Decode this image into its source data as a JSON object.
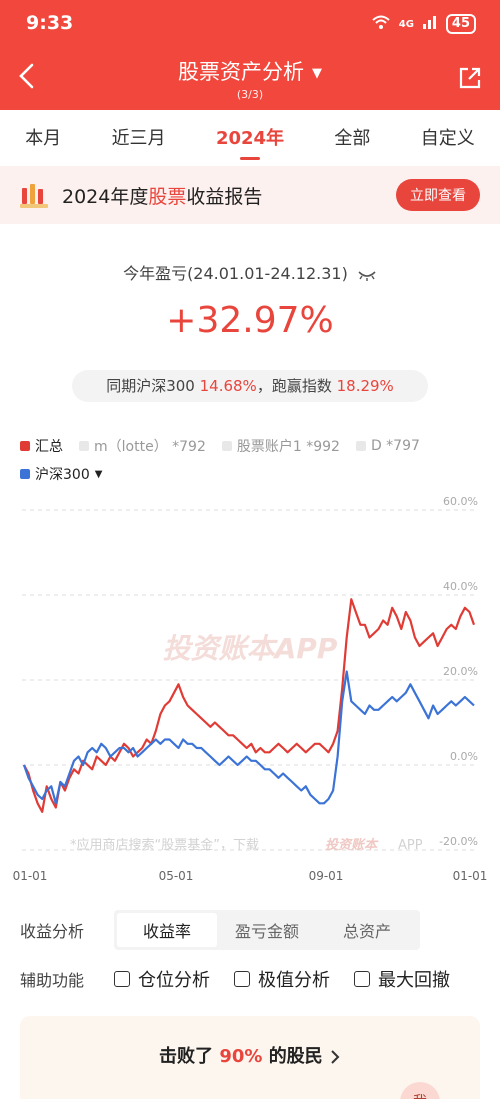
{
  "status": {
    "time": "9:33",
    "signal": "4G",
    "battery": "45"
  },
  "header": {
    "title": "股票资产分析",
    "subtitle": "(3/3)"
  },
  "tabs": [
    {
      "label": "本月"
    },
    {
      "label": "近三月"
    },
    {
      "label": "2024年",
      "active": true
    },
    {
      "label": "全部"
    },
    {
      "label": "自定义"
    }
  ],
  "banner": {
    "prefix": "2024年度",
    "highlight": "股票",
    "suffix": "收益报告",
    "button": "立即查看"
  },
  "summary": {
    "period": "今年盈亏(24.01.01-24.12.31)",
    "total_pct": "+32.97%",
    "compare_prefix": "同期沪深300",
    "compare_value": "14.68%",
    "beat_prefix": "，跑赢指数",
    "beat_value": "18.29%"
  },
  "legend": [
    {
      "label": "汇总",
      "color": "#e03b35",
      "active": true
    },
    {
      "label": "m（lotte） *792",
      "active": false
    },
    {
      "label": "股票账户1 *992",
      "active": false
    },
    {
      "label": "D *797",
      "active": false
    }
  ],
  "index_legend": {
    "label": "沪深300",
    "color": "#3b73d6"
  },
  "chart_data": {
    "type": "line",
    "x_ticks": [
      "01-01",
      "05-01",
      "09-01",
      "01-01"
    ],
    "y_ticks": [
      "60.0%",
      "40.0%",
      "20.0%",
      "0.0%",
      "-20.0%"
    ],
    "ylim": [
      -20,
      60
    ],
    "watermark": "投资账本APP",
    "footer_note": "*应用商店搜索“股票基金”，下载",
    "footer_brand": "投资账本",
    "footer_app": "APP",
    "series": [
      {
        "name": "汇总",
        "color": "#e03b35",
        "values": [
          0,
          -2,
          -6,
          -9,
          -11,
          -5,
          -8,
          -10,
          -4,
          -6,
          -3,
          -1,
          -2,
          1,
          0,
          -1,
          2,
          1,
          0,
          2,
          1,
          3,
          5,
          4,
          2,
          3,
          4,
          6,
          5,
          8,
          12,
          14,
          15,
          17,
          19,
          16,
          14,
          13,
          12,
          11,
          10,
          9,
          10,
          9,
          8,
          7,
          7,
          6,
          5,
          4,
          5,
          3,
          4,
          3,
          3,
          4,
          5,
          4,
          3,
          4,
          5,
          4,
          3,
          4,
          5,
          5,
          4,
          3,
          5,
          8,
          18,
          30,
          39,
          36,
          33,
          33,
          30,
          31,
          32,
          34,
          33,
          37,
          35,
          32,
          36,
          34,
          30,
          28,
          29,
          30,
          31,
          28,
          30,
          32,
          33,
          32,
          35,
          37,
          36,
          33
        ]
      },
      {
        "name": "沪深300",
        "color": "#3b73d6",
        "values": [
          0,
          -3,
          -5,
          -7,
          -8,
          -6,
          -5,
          -9,
          -4,
          -5,
          -2,
          1,
          2,
          0,
          3,
          4,
          3,
          5,
          4,
          2,
          3,
          4,
          4,
          3,
          4,
          2,
          3,
          4,
          5,
          6,
          5,
          6,
          6,
          5,
          4,
          6,
          5,
          5,
          4,
          4,
          3,
          2,
          1,
          0,
          1,
          2,
          1,
          0,
          1,
          2,
          1,
          1,
          0,
          -1,
          -1,
          -2,
          -3,
          -2,
          -3,
          -4,
          -5,
          -6,
          -5,
          -7,
          -8,
          -9,
          -9,
          -8,
          -6,
          2,
          15,
          22,
          15,
          14,
          13,
          12,
          14,
          13,
          13,
          14,
          15,
          16,
          15,
          16,
          17,
          19,
          17,
          15,
          13,
          11,
          14,
          12,
          13,
          14,
          15,
          14,
          15,
          16,
          15,
          14
        ]
      }
    ]
  },
  "analysis": {
    "label": "收益分析",
    "options": [
      "收益率",
      "盈亏金额",
      "总资产"
    ],
    "active": 0
  },
  "aux": {
    "label": "辅助功能",
    "options": [
      "仓位分析",
      "极值分析",
      "最大回撤"
    ]
  },
  "beat": {
    "prefix": "击败了",
    "value": "90%",
    "suffix": "的股民",
    "badge": "我"
  }
}
